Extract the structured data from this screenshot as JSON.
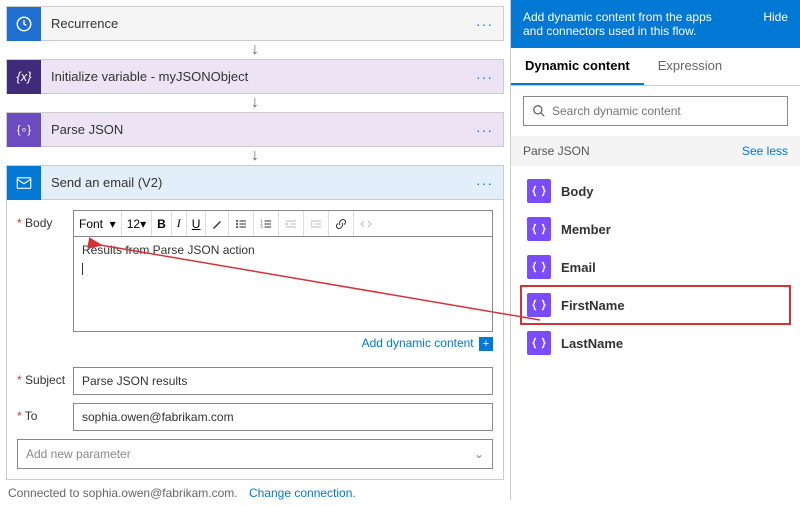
{
  "steps": {
    "recurrence": "Recurrence",
    "init_var": "Initialize variable - myJSONObject",
    "parse_json": "Parse JSON",
    "send_email": "Send an email (V2)"
  },
  "email": {
    "labels": {
      "body": "Body",
      "subject": "Subject",
      "to": "To"
    },
    "toolbar": {
      "font": "Font",
      "size": "12"
    },
    "body_text": "Results from Parse JSON action",
    "subject_value": "Parse JSON results",
    "to_value": "sophia.owen@fabrikam.com",
    "add_dynamic": "Add dynamic content",
    "add_param": "Add new parameter",
    "footer_connected": "Connected to sophia.owen@fabrikam.com.",
    "footer_change": "Change connection."
  },
  "panel": {
    "header": "Add dynamic content from the apps and connectors used in this flow.",
    "hide": "Hide",
    "tabs": {
      "dynamic": "Dynamic content",
      "expression": "Expression"
    },
    "search_placeholder": "Search dynamic content",
    "section": "Parse JSON",
    "see_less": "See less",
    "tokens": [
      "Body",
      "Member",
      "Email",
      "FirstName",
      "LastName"
    ],
    "highlighted_token": "FirstName"
  },
  "colors": {
    "primary": "#0078d4",
    "token_icon": "#7b4bff",
    "highlight": "#d13438"
  }
}
